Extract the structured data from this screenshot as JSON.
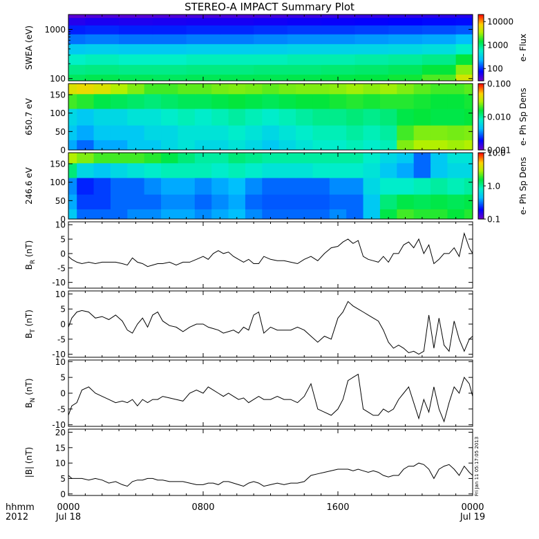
{
  "title": "STEREO-A IMPACT Summary Plot",
  "time_axis": {
    "units_label": "hhmm",
    "year_label": "2012",
    "ticks": [
      {
        "label": "0000",
        "sublabel": "Jul 18",
        "hour": 0
      },
      {
        "label": "0800",
        "sublabel": "",
        "hour": 8
      },
      {
        "label": "1600",
        "sublabel": "",
        "hour": 16
      },
      {
        "label": "0000",
        "sublabel": "Jul 19",
        "hour": 24
      }
    ],
    "range_hours": [
      0,
      24
    ]
  },
  "stamp": "Fri Jan 11 05:17:05 2013",
  "chart_data": [
    {
      "type": "heatmap",
      "ylabel": "SWEA (eV)",
      "yscale": "log",
      "ylim": [
        90,
        2000
      ],
      "yticks": [
        {
          "v": 100,
          "label": "100"
        },
        {
          "v": 1000,
          "label": "1000"
        }
      ],
      "colorbar": {
        "label": "e- Flux",
        "scale": "log",
        "range": [
          30,
          20000
        ],
        "ticks": [
          {
            "v": 100,
            "label": "100"
          },
          {
            "v": 1000,
            "label": "1000"
          },
          {
            "v": 10000,
            "label": "10000"
          }
        ]
      },
      "time_hours": [
        0,
        2,
        4,
        6,
        8,
        10,
        12,
        14,
        16,
        18,
        20,
        22,
        24
      ],
      "energy_eV": [
        100,
        150,
        250,
        400,
        650,
        1000,
        1500,
        2000
      ],
      "values": [
        [
          1200,
          1300,
          1250,
          1200,
          1250,
          1300,
          1300,
          1350,
          1400,
          1450,
          1600,
          2200,
          5000
        ],
        [
          900,
          950,
          900,
          900,
          950,
          950,
          1000,
          1000,
          1050,
          1100,
          1200,
          1500,
          3000
        ],
        [
          600,
          650,
          600,
          600,
          650,
          650,
          650,
          700,
          700,
          750,
          800,
          900,
          1500
        ],
        [
          300,
          320,
          300,
          300,
          320,
          320,
          330,
          350,
          350,
          360,
          380,
          420,
          600
        ],
        [
          150,
          160,
          150,
          150,
          160,
          160,
          170,
          180,
          180,
          190,
          200,
          210,
          250
        ],
        [
          90,
          95,
          90,
          90,
          95,
          95,
          100,
          105,
          105,
          110,
          115,
          120,
          130
        ],
        [
          55,
          60,
          58,
          60,
          62,
          62,
          65,
          68,
          70,
          72,
          75,
          78,
          80
        ],
        [
          35,
          38,
          36,
          38,
          40,
          40,
          42,
          45,
          46,
          48,
          50,
          52,
          55
        ]
      ]
    },
    {
      "type": "heatmap",
      "ylabel": "650.7 eV",
      "ylim": [
        0,
        180
      ],
      "yticks": [
        {
          "v": 0,
          "label": "0"
        },
        {
          "v": 50,
          "label": "50"
        },
        {
          "v": 100,
          "label": "100"
        },
        {
          "v": 150,
          "label": "150"
        }
      ],
      "colorbar": {
        "label": "e- Ph Sp Dens",
        "scale": "log",
        "range": [
          0.001,
          0.1
        ],
        "ticks": [
          {
            "v": 0.001,
            "label": "0.001"
          },
          {
            "v": 0.01,
            "label": "0.010"
          },
          {
            "v": 0.1,
            "label": "0.100"
          }
        ]
      },
      "time_hours": [
        0,
        1,
        2,
        3,
        4,
        5,
        6,
        7,
        8,
        9,
        10,
        11,
        12,
        13,
        14,
        15,
        16,
        17,
        18,
        19,
        20,
        21,
        22,
        23,
        24
      ],
      "pitch_deg": [
        10,
        45,
        90,
        135,
        170
      ],
      "values": [
        [
          0.004,
          0.003,
          0.004,
          0.004,
          0.005,
          0.005,
          0.006,
          0.007,
          0.006,
          0.006,
          0.007,
          0.006,
          0.005,
          0.006,
          0.007,
          0.008,
          0.008,
          0.009,
          0.008,
          0.009,
          0.025,
          0.03,
          0.03,
          0.028,
          0.03
        ],
        [
          0.005,
          0.004,
          0.005,
          0.005,
          0.005,
          0.006,
          0.006,
          0.007,
          0.007,
          0.007,
          0.008,
          0.007,
          0.006,
          0.007,
          0.008,
          0.009,
          0.009,
          0.01,
          0.009,
          0.01,
          0.02,
          0.025,
          0.025,
          0.024,
          0.025
        ],
        [
          0.006,
          0.005,
          0.006,
          0.006,
          0.007,
          0.007,
          0.008,
          0.009,
          0.008,
          0.009,
          0.01,
          0.009,
          0.008,
          0.009,
          0.01,
          0.011,
          0.011,
          0.012,
          0.011,
          0.012,
          0.015,
          0.016,
          0.015,
          0.015,
          0.016
        ],
        [
          0.02,
          0.018,
          0.015,
          0.014,
          0.013,
          0.012,
          0.013,
          0.014,
          0.014,
          0.015,
          0.016,
          0.015,
          0.014,
          0.015,
          0.016,
          0.016,
          0.017,
          0.018,
          0.017,
          0.018,
          0.018,
          0.017,
          0.016,
          0.016,
          0.017
        ],
        [
          0.04,
          0.045,
          0.04,
          0.03,
          0.025,
          0.02,
          0.02,
          0.022,
          0.022,
          0.024,
          0.025,
          0.024,
          0.022,
          0.024,
          0.025,
          0.025,
          0.026,
          0.028,
          0.026,
          0.028,
          0.025,
          0.022,
          0.02,
          0.02,
          0.022
        ]
      ]
    },
    {
      "type": "heatmap",
      "ylabel": "246.6 eV",
      "ylim": [
        0,
        180
      ],
      "yticks": [
        {
          "v": 0,
          "label": "0"
        },
        {
          "v": 50,
          "label": "50"
        },
        {
          "v": 100,
          "label": "100"
        },
        {
          "v": 150,
          "label": "150"
        }
      ],
      "colorbar": {
        "label": "e- Ph Sp Dens",
        "scale": "log",
        "range": [
          0.1,
          10
        ],
        "ticks": [
          {
            "v": 0.1,
            "label": "0.1"
          },
          {
            "v": 1,
            "label": "1.0"
          },
          {
            "v": 10,
            "label": "10.0"
          }
        ]
      },
      "time_hours": [
        0,
        1,
        2,
        3,
        4,
        5,
        6,
        7,
        8,
        9,
        10,
        11,
        12,
        13,
        14,
        15,
        16,
        17,
        18,
        19,
        20,
        21,
        22,
        23,
        24
      ],
      "pitch_deg": [
        10,
        45,
        90,
        135,
        170
      ],
      "values": [
        [
          0.5,
          0.3,
          0.3,
          0.3,
          0.35,
          0.35,
          0.4,
          0.4,
          0.35,
          0.4,
          0.45,
          0.35,
          0.3,
          0.3,
          0.3,
          0.3,
          0.35,
          0.3,
          0.5,
          1.5,
          2.0,
          1.8,
          1.8,
          1.6,
          1.8
        ],
        [
          0.4,
          0.25,
          0.25,
          0.3,
          0.3,
          0.3,
          0.35,
          0.35,
          0.3,
          0.35,
          0.4,
          0.3,
          0.28,
          0.28,
          0.28,
          0.28,
          0.3,
          0.3,
          0.5,
          1.2,
          1.5,
          1.4,
          1.5,
          1.4,
          1.5
        ],
        [
          0.35,
          0.22,
          0.25,
          0.3,
          0.3,
          0.35,
          0.4,
          0.4,
          0.35,
          0.4,
          0.45,
          0.35,
          0.3,
          0.3,
          0.3,
          0.3,
          0.35,
          0.35,
          0.6,
          0.8,
          0.8,
          0.9,
          1.0,
          0.9,
          1.0
        ],
        [
          1.2,
          0.6,
          0.5,
          0.6,
          0.7,
          0.8,
          0.9,
          0.9,
          0.9,
          0.8,
          0.9,
          0.8,
          0.7,
          0.7,
          0.7,
          0.8,
          0.8,
          0.8,
          0.7,
          0.5,
          0.4,
          0.3,
          0.5,
          0.6,
          0.6
        ],
        [
          3.0,
          2.5,
          2.0,
          2.0,
          2.0,
          1.8,
          1.5,
          1.2,
          1.0,
          1.0,
          1.2,
          1.1,
          1.0,
          1.0,
          1.0,
          1.0,
          1.0,
          1.0,
          0.8,
          0.6,
          0.5,
          0.3,
          0.5,
          0.7,
          0.7
        ]
      ]
    },
    {
      "type": "line",
      "ylabel_main": "B",
      "ylabel_sub": "R",
      "ylabel_unit": "(nT)",
      "ylim": [
        -12,
        11
      ],
      "yticks": [
        {
          "v": -10,
          "label": "-10"
        },
        {
          "v": -5,
          "label": "-5"
        },
        {
          "v": 0,
          "label": "0"
        },
        {
          "v": 5,
          "label": "5"
        },
        {
          "v": 10,
          "label": "10"
        }
      ],
      "x_hours": [
        0,
        0.2,
        0.5,
        0.8,
        1.2,
        1.6,
        2,
        2.4,
        2.8,
        3.2,
        3.5,
        3.8,
        4.1,
        4.4,
        4.7,
        5,
        5.3,
        5.6,
        6,
        6.4,
        6.8,
        7.2,
        7.6,
        8,
        8.3,
        8.6,
        8.9,
        9.2,
        9.5,
        9.8,
        10.1,
        10.4,
        10.7,
        11,
        11.3,
        11.6,
        12,
        12.4,
        12.8,
        13.2,
        13.6,
        14,
        14.4,
        14.8,
        15.2,
        15.6,
        16,
        16.3,
        16.6,
        16.9,
        17.2,
        17.5,
        17.8,
        18.1,
        18.4,
        18.7,
        19,
        19.3,
        19.6,
        19.9,
        20.2,
        20.5,
        20.8,
        21.1,
        21.4,
        21.7,
        22,
        22.3,
        22.6,
        22.9,
        23.2,
        23.5,
        23.8,
        24
      ],
      "y": [
        -1,
        -2,
        -3,
        -3.5,
        -3,
        -3.5,
        -3,
        -3,
        -3,
        -3.5,
        -4,
        -1.5,
        -3,
        -3.5,
        -4.5,
        -4,
        -3.5,
        -3.5,
        -3,
        -4,
        -3,
        -3,
        -2,
        -1,
        -2,
        0,
        1,
        0,
        0.5,
        -1,
        -2,
        -3,
        -2,
        -3.5,
        -3.5,
        -1,
        -2,
        -2.5,
        -2.5,
        -3,
        -3.5,
        -2,
        -1,
        -2.5,
        0,
        2,
        2.5,
        4,
        5,
        3.5,
        4.5,
        -1,
        -2,
        -2.5,
        -3,
        -1,
        -3,
        0,
        0,
        3,
        4,
        2,
        5,
        0,
        3,
        -3.5,
        -2,
        0,
        0,
        2,
        -1,
        7,
        2,
        0
      ]
    },
    {
      "type": "line",
      "ylabel_main": "B",
      "ylabel_sub": "T",
      "ylabel_unit": "(nT)",
      "ylim": [
        -11,
        11
      ],
      "yticks": [
        {
          "v": -10,
          "label": "-10"
        },
        {
          "v": -5,
          "label": "-5"
        },
        {
          "v": 0,
          "label": "0"
        },
        {
          "v": 5,
          "label": "5"
        },
        {
          "v": 10,
          "label": "10"
        }
      ],
      "x_hours": [
        0,
        0.2,
        0.5,
        0.8,
        1.2,
        1.6,
        2,
        2.4,
        2.8,
        3.2,
        3.5,
        3.8,
        4.1,
        4.4,
        4.7,
        5,
        5.3,
        5.6,
        6,
        6.4,
        6.8,
        7.2,
        7.6,
        8,
        8.3,
        8.6,
        8.9,
        9.2,
        9.5,
        9.8,
        10.1,
        10.4,
        10.7,
        11,
        11.3,
        11.6,
        12,
        12.4,
        12.8,
        13.2,
        13.6,
        14,
        14.4,
        14.8,
        15.2,
        15.6,
        16,
        16.3,
        16.6,
        16.9,
        17.2,
        17.5,
        17.8,
        18.1,
        18.4,
        18.7,
        19,
        19.3,
        19.6,
        19.9,
        20.2,
        20.5,
        20.8,
        21.1,
        21.4,
        21.7,
        22,
        22.3,
        22.6,
        22.9,
        23.2,
        23.5,
        23.8,
        24
      ],
      "y": [
        -1,
        2,
        4,
        4.5,
        4,
        2,
        2.5,
        1.5,
        3,
        1,
        -2,
        -3,
        0,
        2,
        -1,
        3,
        4,
        1,
        -0.5,
        -1,
        -2.5,
        -1,
        0,
        0,
        -1,
        -1.5,
        -2,
        -3,
        -2.5,
        -2,
        -3,
        -1,
        -2,
        3,
        4,
        -3,
        -1,
        -2,
        -2,
        -2,
        -1,
        -2,
        -4,
        -6,
        -4,
        -5,
        2,
        4,
        7.5,
        6,
        5,
        4,
        3,
        2,
        1,
        -2,
        -6,
        -8,
        -7,
        -8,
        -9.5,
        -9,
        -10,
        -9,
        3,
        -8,
        2,
        -7,
        -9,
        1,
        -5,
        -9,
        -5,
        -4
      ]
    },
    {
      "type": "line",
      "ylabel_main": "B",
      "ylabel_sub": "N",
      "ylabel_unit": "(nT)",
      "ylim": [
        -10.5,
        10.5
      ],
      "yticks": [
        {
          "v": -10,
          "label": "-10"
        },
        {
          "v": -5,
          "label": "-5"
        },
        {
          "v": 0,
          "label": "0"
        },
        {
          "v": 5,
          "label": "5"
        },
        {
          "v": 10,
          "label": "10"
        }
      ],
      "x_hours": [
        0,
        0.2,
        0.5,
        0.8,
        1.2,
        1.6,
        2,
        2.4,
        2.8,
        3.2,
        3.5,
        3.8,
        4.1,
        4.4,
        4.7,
        5,
        5.3,
        5.6,
        6,
        6.4,
        6.8,
        7.2,
        7.6,
        8,
        8.3,
        8.6,
        8.9,
        9.2,
        9.5,
        9.8,
        10.1,
        10.4,
        10.7,
        11,
        11.3,
        11.6,
        12,
        12.4,
        12.8,
        13.2,
        13.6,
        14,
        14.4,
        14.8,
        15.2,
        15.6,
        16,
        16.3,
        16.6,
        16.9,
        17.2,
        17.5,
        17.8,
        18.1,
        18.4,
        18.7,
        19,
        19.3,
        19.6,
        19.9,
        20.2,
        20.5,
        20.8,
        21.1,
        21.4,
        21.7,
        22,
        22.3,
        22.6,
        22.9,
        23.2,
        23.5,
        23.8,
        24
      ],
      "y": [
        -7,
        -4,
        -3,
        1,
        2,
        0,
        -1,
        -2,
        -3,
        -2.5,
        -3,
        -2,
        -4,
        -2,
        -3,
        -2,
        -2,
        -1,
        -1.5,
        -2,
        -2.5,
        0,
        1,
        0,
        2,
        1,
        0,
        -1,
        0,
        -1,
        -2,
        -1.5,
        -3,
        -2,
        -1,
        -2,
        -2,
        -1,
        -2,
        -2,
        -3,
        -1,
        3,
        -5,
        -6,
        -7,
        -5,
        -2,
        4,
        5,
        6,
        -5,
        -6,
        -7,
        -7,
        -5,
        -6,
        -5,
        -2,
        0,
        2,
        -3,
        -8,
        -2,
        -6,
        2,
        -5,
        -9,
        -3,
        2,
        0,
        5,
        3,
        -1
      ]
    },
    {
      "type": "line",
      "ylabel_main": "|B|",
      "ylabel_sub": "",
      "ylabel_unit": "(nT)",
      "ylim": [
        -0.5,
        21
      ],
      "yticks": [
        {
          "v": 0,
          "label": "0"
        },
        {
          "v": 5,
          "label": "5"
        },
        {
          "v": 10,
          "label": "10"
        },
        {
          "v": 15,
          "label": "15"
        },
        {
          "v": 20,
          "label": "20"
        }
      ],
      "x_hours": [
        0,
        0.2,
        0.5,
        0.8,
        1.2,
        1.6,
        2,
        2.4,
        2.8,
        3.2,
        3.5,
        3.8,
        4.1,
        4.4,
        4.7,
        5,
        5.3,
        5.6,
        6,
        6.4,
        6.8,
        7.2,
        7.6,
        8,
        8.3,
        8.6,
        8.9,
        9.2,
        9.5,
        9.8,
        10.1,
        10.4,
        10.7,
        11,
        11.3,
        11.6,
        12,
        12.4,
        12.8,
        13.2,
        13.6,
        14,
        14.4,
        14.8,
        15.2,
        15.6,
        16,
        16.3,
        16.6,
        16.9,
        17.2,
        17.5,
        17.8,
        18.1,
        18.4,
        18.7,
        19,
        19.3,
        19.6,
        19.9,
        20.2,
        20.5,
        20.8,
        21.1,
        21.4,
        21.7,
        22,
        22.3,
        22.6,
        22.9,
        23.2,
        23.5,
        23.8,
        24
      ],
      "y": [
        6,
        5,
        5,
        5,
        4.5,
        5,
        4.5,
        3.5,
        4,
        3,
        2.5,
        4,
        4.5,
        4.5,
        5,
        5,
        4.5,
        4.5,
        4,
        4,
        4,
        3.5,
        3,
        3,
        3.5,
        3.5,
        3,
        4,
        4,
        3.5,
        3,
        2.5,
        3.5,
        4,
        3.5,
        2.5,
        3,
        3.5,
        3,
        3.5,
        3.5,
        4,
        6,
        6.5,
        7,
        7.5,
        8,
        8,
        8,
        7.5,
        8,
        7.5,
        7,
        7.5,
        7,
        6,
        5.5,
        6,
        6,
        8,
        9,
        9,
        10,
        9.5,
        8,
        5,
        8,
        9,
        9.5,
        8,
        6,
        9,
        7,
        6
      ]
    }
  ]
}
